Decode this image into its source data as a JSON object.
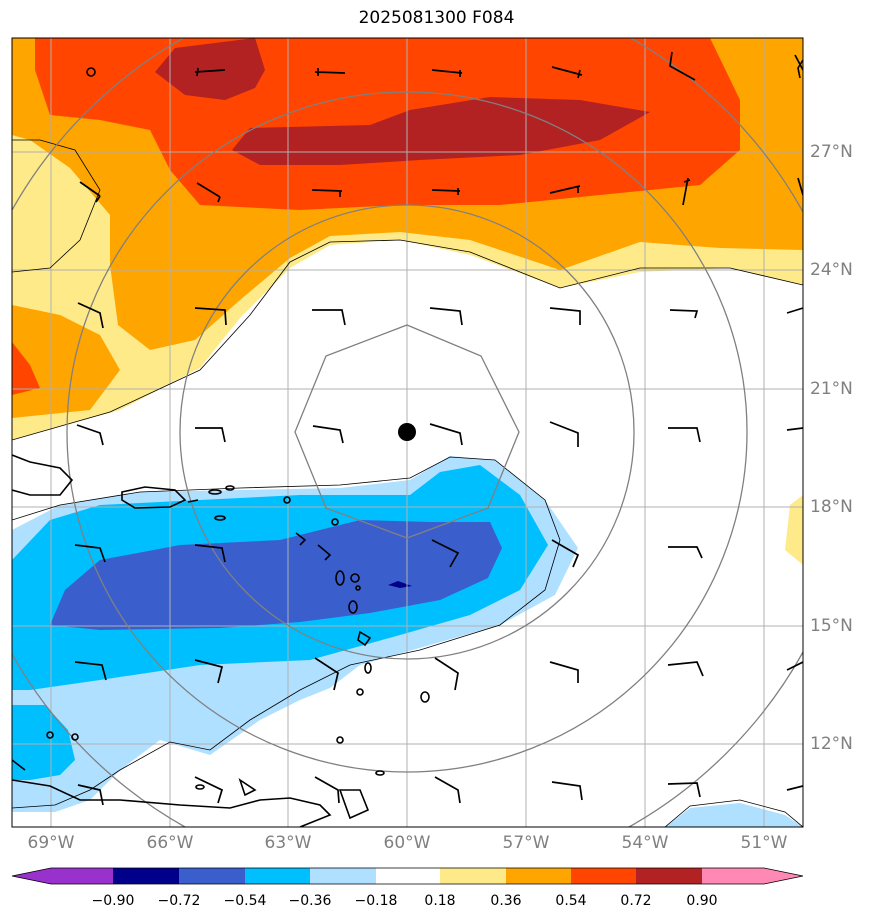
{
  "title": "2025081300 F084",
  "lon_labels": [
    "69°W",
    "66°W",
    "63°W",
    "60°W",
    "57°W",
    "54°W",
    "51°W"
  ],
  "lat_labels": [
    "27°N",
    "24°N",
    "21°N",
    "18°N",
    "15°N",
    "12°N"
  ],
  "colorbar": {
    "ticks": [
      "−0.90",
      "−0.72",
      "−0.54",
      "−0.36",
      "−0.18",
      "0.18",
      "0.36",
      "0.54",
      "0.72",
      "0.90"
    ],
    "colors": [
      "#9932cc",
      "#00008b",
      "#3a5fcd",
      "#00bfff",
      "#b0e0ff",
      "#ffffff",
      "#ffea8a",
      "#ffa500",
      "#ff4500",
      "#b22222",
      "#ff88b4"
    ]
  },
  "colors": {
    "gridline": "#b0b0b0",
    "range_rings": "#808080",
    "coastline": "#000000",
    "center_marker": "#000000"
  },
  "center_marker": {
    "lon": "60°W",
    "lat": "19.9°N"
  }
}
